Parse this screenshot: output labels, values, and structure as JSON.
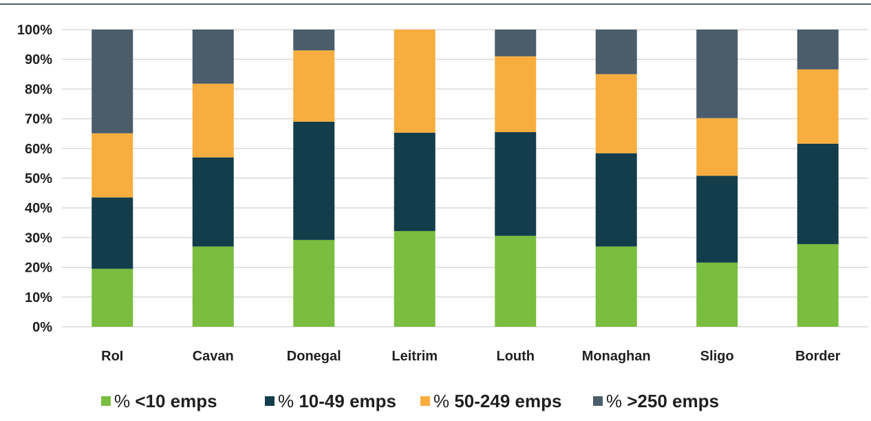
{
  "chart_data": {
    "type": "bar",
    "stacked": true,
    "percent": true,
    "categories": [
      "RoI",
      "Cavan",
      "Donegal",
      "Leitrim",
      "Louth",
      "Monaghan",
      "Sligo",
      "Border"
    ],
    "series": [
      {
        "name": "% <10 emps",
        "color": "#7abd3f",
        "values": [
          19.5,
          27.0,
          29.2,
          32.2,
          30.6,
          27.0,
          21.6,
          27.8
        ]
      },
      {
        "name": "% 10-49 emps",
        "color": "#133d4b",
        "values": [
          24.0,
          30.0,
          39.8,
          33.1,
          34.9,
          31.4,
          29.2,
          33.8
        ]
      },
      {
        "name": "% 50-249 emps",
        "color": "#f7ae3f",
        "values": [
          21.6,
          24.8,
          24.0,
          34.7,
          25.5,
          26.6,
          19.4,
          25.0
        ]
      },
      {
        "name": "% >250 emps",
        "color": "#4b5d6b",
        "values": [
          34.9,
          18.2,
          7.0,
          0.0,
          9.0,
          15.0,
          29.8,
          13.4
        ]
      }
    ],
    "y_ticks": [
      "0%",
      "10%",
      "20%",
      "30%",
      "40%",
      "50%",
      "60%",
      "70%",
      "80%",
      "90%",
      "100%"
    ],
    "ylim": [
      0,
      100
    ],
    "grid": true,
    "legend": "bottom",
    "title": "",
    "xlabel": "",
    "ylabel": ""
  }
}
